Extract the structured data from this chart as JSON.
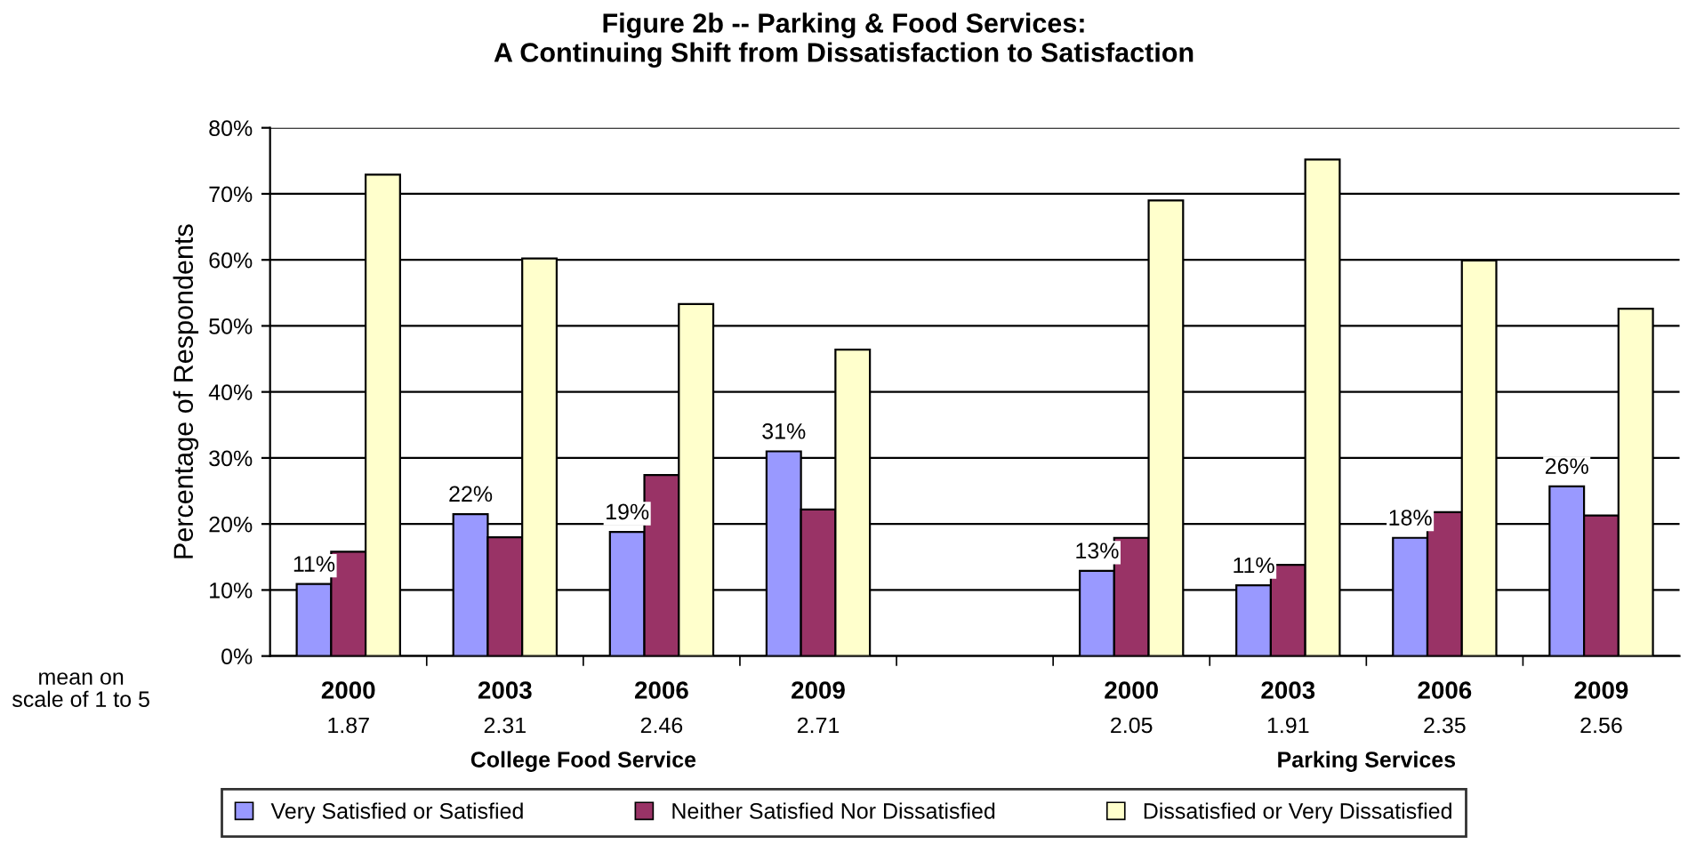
{
  "chart_data": {
    "type": "bar",
    "title": "Figure 2b -- Parking & Food Services:\nA Continuing Shift from Dissatisfaction to Satisfaction",
    "ylabel": "Percentage of Respondents",
    "categories": [
      "2000",
      "2003",
      "2006",
      "2009",
      null,
      "2000",
      "2003",
      "2006",
      "2009"
    ],
    "series": [
      {
        "name": "Very Satisfied or Satisfied",
        "color": "#9999ff",
        "values": [
          10.9,
          21.5,
          18.8,
          31.0,
          null,
          12.9,
          10.7,
          17.9,
          25.7
        ],
        "value_labels": [
          "11%",
          "22%",
          "19%",
          "31%",
          null,
          "13%",
          "11%",
          "18%",
          "26%"
        ]
      },
      {
        "name": "Neither Satisfied Nor Dissatisfied",
        "color": "#993366",
        "values": [
          15.8,
          18.0,
          27.4,
          22.2,
          null,
          17.9,
          13.8,
          21.8,
          21.3
        ]
      },
      {
        "name": "Dissatisfied or Very Dissatisfied",
        "color": "#ffffcc",
        "values": [
          72.9,
          60.2,
          53.3,
          46.4,
          null,
          69.0,
          75.2,
          59.9,
          52.6
        ]
      }
    ],
    "ylim": [
      0,
      80
    ],
    "yticks": [
      {
        "value": 0,
        "label": "0%"
      },
      {
        "value": 10,
        "label": "10%"
      },
      {
        "value": 20,
        "label": "20%"
      },
      {
        "value": 30,
        "label": "30%"
      },
      {
        "value": 40,
        "label": "40%"
      },
      {
        "value": 50,
        "label": "50%"
      },
      {
        "value": 60,
        "label": "60%"
      },
      {
        "value": 70,
        "label": "70%"
      },
      {
        "value": 80,
        "label": "80%"
      }
    ],
    "grid": "y",
    "legend": "bottom",
    "annotations": [
      "mean on\nscale of 1 to 5",
      "1.87",
      "2.31",
      "2.46",
      "2.71",
      "2.05",
      "1.91",
      "2.35",
      "2.56",
      "College Food Service",
      "Parking Services"
    ]
  }
}
